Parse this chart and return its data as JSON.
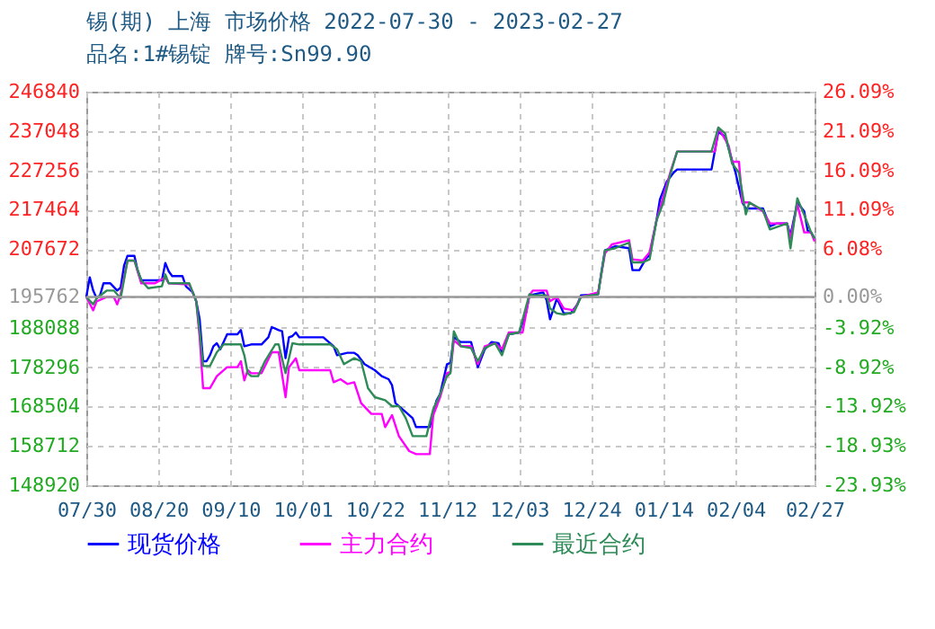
{
  "chart_data": {
    "type": "line",
    "title": "锡(期) 上海 市场价格 2022-07-30 - 2023-02-27",
    "subtitle": "品名:1#锡锭 牌号:Sn99.90",
    "xlim": [
      "2022-07-30",
      "2023-02-27"
    ],
    "xticks": [
      {
        "value": "2022-07-30",
        "label": "07/30"
      },
      {
        "value": "2022-08-20",
        "label": "08/20"
      },
      {
        "value": "2022-09-10",
        "label": "09/10"
      },
      {
        "value": "2022-10-01",
        "label": "10/01"
      },
      {
        "value": "2022-10-22",
        "label": "10/22"
      },
      {
        "value": "2022-11-12",
        "label": "11/12"
      },
      {
        "value": "2022-12-03",
        "label": "12/03"
      },
      {
        "value": "2022-12-24",
        "label": "12/24"
      },
      {
        "value": "2023-01-14",
        "label": "01/14"
      },
      {
        "value": "2023-02-04",
        "label": "02/04"
      },
      {
        "value": "2023-02-27",
        "label": "02/27"
      }
    ],
    "ylim": [
      148920,
      246840
    ],
    "yticks": [
      148920,
      158712,
      168504,
      178296,
      188088,
      195762,
      207672,
      217464,
      227256,
      237048,
      246840
    ],
    "y2lim": [
      -23.93,
      26.09
    ],
    "y2ticks": [
      {
        "value": -23.93,
        "label": "-23.93%"
      },
      {
        "value": -18.93,
        "label": "-18.93%"
      },
      {
        "value": -13.92,
        "label": "-13.92%"
      },
      {
        "value": -8.92,
        "label": "-8.92%"
      },
      {
        "value": -3.92,
        "label": "-3.92%"
      },
      {
        "value": 0,
        "label": "0.00%"
      },
      {
        "value": 6.08,
        "label": "6.08%"
      },
      {
        "value": 11.09,
        "label": "11.09%"
      },
      {
        "value": 16.09,
        "label": "16.09%"
      },
      {
        "value": 21.09,
        "label": "21.09%"
      },
      {
        "value": 26.09,
        "label": "26.09%"
      }
    ],
    "ref_lines": [
      {
        "axis": "y",
        "value": 195762,
        "color": "#999999"
      }
    ],
    "grid": true,
    "legend": "bottom",
    "line_style": "solid",
    "series": [
      {
        "name": "现货价格",
        "color": "#0000ff",
        "x": [
          "2022-07-30",
          "2022-07-31",
          "2022-08-01",
          "2022-08-02",
          "2022-08-03",
          "2022-08-04",
          "2022-08-06",
          "2022-08-08",
          "2022-08-09",
          "2022-08-10",
          "2022-08-11",
          "2022-08-13",
          "2022-08-14",
          "2022-08-15",
          "2022-08-21",
          "2022-08-22",
          "2022-08-23",
          "2022-08-24",
          "2022-08-27",
          "2022-08-28",
          "2022-08-30",
          "2022-08-31",
          "2022-09-01",
          "2022-09-02",
          "2022-09-03",
          "2022-09-04",
          "2022-09-05",
          "2022-09-06",
          "2022-09-07",
          "2022-09-09",
          "2022-09-12",
          "2022-09-13",
          "2022-09-14",
          "2022-09-16",
          "2022-09-19",
          "2022-09-21",
          "2022-09-22",
          "2022-09-24",
          "2022-09-25",
          "2022-09-26",
          "2022-09-27",
          "2022-09-28",
          "2022-09-29",
          "2022-09-30",
          "2022-10-07",
          "2022-10-10",
          "2022-10-11",
          "2022-10-14",
          "2022-10-16",
          "2022-10-17",
          "2022-10-19",
          "2022-10-22",
          "2022-10-24",
          "2022-10-26",
          "2022-10-27",
          "2022-10-28",
          "2022-10-31",
          "2022-11-02",
          "2022-11-03",
          "2022-11-07",
          "2022-11-08",
          "2022-11-09",
          "2022-11-10",
          "2022-11-12",
          "2022-11-13",
          "2022-11-14",
          "2022-11-16",
          "2022-11-19",
          "2022-11-21",
          "2022-11-23",
          "2022-11-25",
          "2022-11-27",
          "2022-11-28",
          "2022-11-30",
          "2022-12-03",
          "2022-12-05",
          "2022-12-06",
          "2022-12-10",
          "2022-12-11",
          "2022-12-12",
          "2022-12-14",
          "2022-12-16",
          "2022-12-18",
          "2022-12-20",
          "2022-12-21",
          "2022-12-26",
          "2022-12-27",
          "2022-12-28",
          "2022-12-31",
          "2023-01-04",
          "2023-01-05",
          "2023-01-07",
          "2023-01-09",
          "2023-01-10",
          "2023-01-12",
          "2023-01-13",
          "2023-01-15",
          "2023-01-17",
          "2023-01-18",
          "2023-01-28",
          "2023-01-30",
          "2023-02-01",
          "2023-02-03",
          "2023-02-04",
          "2023-02-06",
          "2023-02-07",
          "2023-02-12",
          "2023-02-14",
          "2023-02-16",
          "2023-02-19",
          "2023-02-20",
          "2023-02-22",
          "2023-02-24",
          "2023-02-25",
          "2023-02-26",
          "2023-02-27"
        ],
        "values": [
          195760,
          200640,
          197360,
          195420,
          196170,
          199150,
          199150,
          197360,
          198100,
          203620,
          206000,
          206000,
          202130,
          199890,
          199890,
          204210,
          202130,
          200940,
          200940,
          198400,
          196910,
          194680,
          190210,
          179770,
          179770,
          181260,
          183500,
          184240,
          182750,
          186480,
          186480,
          187520,
          183500,
          183950,
          183950,
          185730,
          188270,
          187520,
          187220,
          180520,
          185730,
          186030,
          186930,
          185730,
          185730,
          183500,
          181260,
          181860,
          181860,
          181260,
          179030,
          177540,
          176050,
          175300,
          173810,
          169340,
          167100,
          165610,
          163380,
          163380,
          167100,
          170080,
          171580,
          179030,
          179330,
          185730,
          184540,
          184540,
          178280,
          182750,
          184540,
          184240,
          182010,
          186480,
          186930,
          191690,
          196170,
          196910,
          194970,
          190210,
          195420,
          191690,
          191690,
          193930,
          196170,
          196460,
          202130,
          207350,
          208390,
          207890,
          202430,
          202430,
          205410,
          206150,
          214800,
          220010,
          224480,
          226720,
          227470,
          227470,
          236850,
          235660,
          229700,
          226720,
          219270,
          217780,
          217780,
          213310,
          214050,
          214050,
          211070,
          219270,
          217030,
          212260,
          211820,
          210330
        ]
      },
      {
        "name": "主力合约",
        "color": "#ff00ff",
        "x": [
          "2022-07-30",
          "2022-08-01",
          "2022-08-02",
          "2022-08-05",
          "2022-08-07",
          "2022-08-08",
          "2022-08-09",
          "2022-08-11",
          "2022-08-13",
          "2022-08-15",
          "2022-08-19",
          "2022-08-22",
          "2022-08-23",
          "2022-08-29",
          "2022-08-31",
          "2022-09-01",
          "2022-09-02",
          "2022-09-04",
          "2022-09-06",
          "2022-09-09",
          "2022-09-12",
          "2022-09-13",
          "2022-09-14",
          "2022-09-15",
          "2022-09-16",
          "2022-09-19",
          "2022-09-22",
          "2022-09-24",
          "2022-09-26",
          "2022-09-27",
          "2022-09-29",
          "2022-09-30",
          "2022-10-09",
          "2022-10-10",
          "2022-10-12",
          "2022-10-14",
          "2022-10-16",
          "2022-10-18",
          "2022-10-21",
          "2022-10-24",
          "2022-10-25",
          "2022-10-27",
          "2022-10-29",
          "2022-11-01",
          "2022-11-03",
          "2022-11-07",
          "2022-11-08",
          "2022-11-10",
          "2022-11-12",
          "2022-11-13",
          "2022-11-14",
          "2022-11-16",
          "2022-11-19",
          "2022-11-21",
          "2022-11-23",
          "2022-11-26",
          "2022-11-28",
          "2022-11-30",
          "2022-12-04",
          "2022-12-06",
          "2022-12-07",
          "2022-12-11",
          "2022-12-12",
          "2022-12-14",
          "2022-12-16",
          "2022-12-19",
          "2022-12-21",
          "2022-12-26",
          "2022-12-28",
          "2022-12-30",
          "2023-01-04",
          "2023-01-05",
          "2023-01-08",
          "2023-01-10",
          "2023-01-12",
          "2023-01-14",
          "2023-01-16",
          "2023-01-18",
          "2023-01-29",
          "2023-01-30",
          "2023-02-02",
          "2023-02-03",
          "2023-02-05",
          "2023-02-06",
          "2023-02-08",
          "2023-02-12",
          "2023-02-14",
          "2023-02-19",
          "2023-02-20",
          "2023-02-22",
          "2023-02-24",
          "2023-02-26",
          "2023-02-27"
        ],
        "values": [
          195760,
          192440,
          194680,
          195760,
          195760,
          193930,
          196460,
          204810,
          204810,
          199150,
          199150,
          200640,
          199150,
          198850,
          194680,
          185730,
          173070,
          173070,
          176050,
          178280,
          178280,
          179770,
          175000,
          177540,
          176790,
          176790,
          182010,
          182010,
          170830,
          178280,
          180520,
          177540,
          177540,
          174550,
          175300,
          174110,
          174550,
          169340,
          166660,
          166660,
          163380,
          166360,
          161140,
          157420,
          156670,
          156670,
          166360,
          170830,
          176790,
          177090,
          184990,
          183500,
          183500,
          179030,
          183500,
          184240,
          182750,
          186930,
          186930,
          196170,
          197360,
          197360,
          194680,
          195760,
          192890,
          192440,
          195760,
          196910,
          206600,
          208830,
          209880,
          205110,
          204810,
          206900,
          214800,
          220760,
          226720,
          231940,
          231940,
          237900,
          233430,
          229400,
          229400,
          219270,
          219270,
          217030,
          214050,
          214050,
          210330,
          218820,
          211820,
          211820,
          209580
        ]
      },
      {
        "name": "最近合约",
        "color": "#2e8b57",
        "x": [
          "2022-07-30",
          "2022-08-01",
          "2022-08-02",
          "2022-08-05",
          "2022-08-07",
          "2022-08-09",
          "2022-08-11",
          "2022-08-13",
          "2022-08-15",
          "2022-08-17",
          "2022-08-21",
          "2022-08-22",
          "2022-08-23",
          "2022-08-29",
          "2022-08-31",
          "2022-09-01",
          "2022-09-02",
          "2022-09-04",
          "2022-09-06",
          "2022-09-08",
          "2022-09-13",
          "2022-09-14",
          "2022-09-15",
          "2022-09-16",
          "2022-09-18",
          "2022-09-20",
          "2022-09-23",
          "2022-09-24",
          "2022-09-26",
          "2022-09-28",
          "2022-09-30",
          "2022-10-09",
          "2022-10-11",
          "2022-10-13",
          "2022-10-16",
          "2022-10-18",
          "2022-10-20",
          "2022-10-22",
          "2022-10-25",
          "2022-10-27",
          "2022-10-29",
          "2022-10-31",
          "2022-11-02",
          "2022-11-06",
          "2022-11-08",
          "2022-11-10",
          "2022-11-12",
          "2022-11-13",
          "2022-11-14",
          "2022-11-16",
          "2022-11-19",
          "2022-11-21",
          "2022-11-23",
          "2022-11-26",
          "2022-11-28",
          "2022-11-30",
          "2022-12-03",
          "2022-12-06",
          "2022-12-07",
          "2022-12-11",
          "2022-12-12",
          "2022-12-14",
          "2022-12-16",
          "2022-12-19",
          "2022-12-21",
          "2022-12-26",
          "2022-12-28",
          "2022-12-31",
          "2023-01-04",
          "2023-01-05",
          "2023-01-08",
          "2023-01-10",
          "2023-01-12",
          "2023-01-14",
          "2023-01-16",
          "2023-01-18",
          "2023-01-28",
          "2023-01-30",
          "2023-02-01",
          "2023-02-03",
          "2023-02-05",
          "2023-02-07",
          "2023-02-08",
          "2023-02-12",
          "2023-02-14",
          "2023-02-19",
          "2023-02-20",
          "2023-02-22",
          "2023-02-25",
          "2023-02-26",
          "2023-02-27"
        ],
        "values": [
          195760,
          193930,
          195420,
          197360,
          197360,
          195420,
          204810,
          204810,
          199890,
          197950,
          198400,
          201380,
          199150,
          199150,
          194680,
          187220,
          178580,
          178580,
          182010,
          183950,
          183950,
          181260,
          176790,
          176050,
          176050,
          179770,
          183950,
          183950,
          176790,
          184240,
          183950,
          183950,
          182750,
          179030,
          180520,
          179770,
          173070,
          170830,
          170080,
          168590,
          168590,
          165610,
          161140,
          161140,
          167850,
          171580,
          176050,
          176790,
          187220,
          183500,
          183050,
          179770,
          183050,
          184240,
          181260,
          186480,
          186930,
          196460,
          196170,
          196170,
          192890,
          191690,
          191400,
          191990,
          195760,
          196460,
          207350,
          207890,
          209280,
          204360,
          204360,
          205110,
          214800,
          219270,
          226270,
          231940,
          231940,
          237900,
          236410,
          228960,
          226720,
          216290,
          219270,
          217330,
          212560,
          214050,
          207890,
          220310,
          214050,
          211820,
          210330
        ]
      }
    ]
  }
}
